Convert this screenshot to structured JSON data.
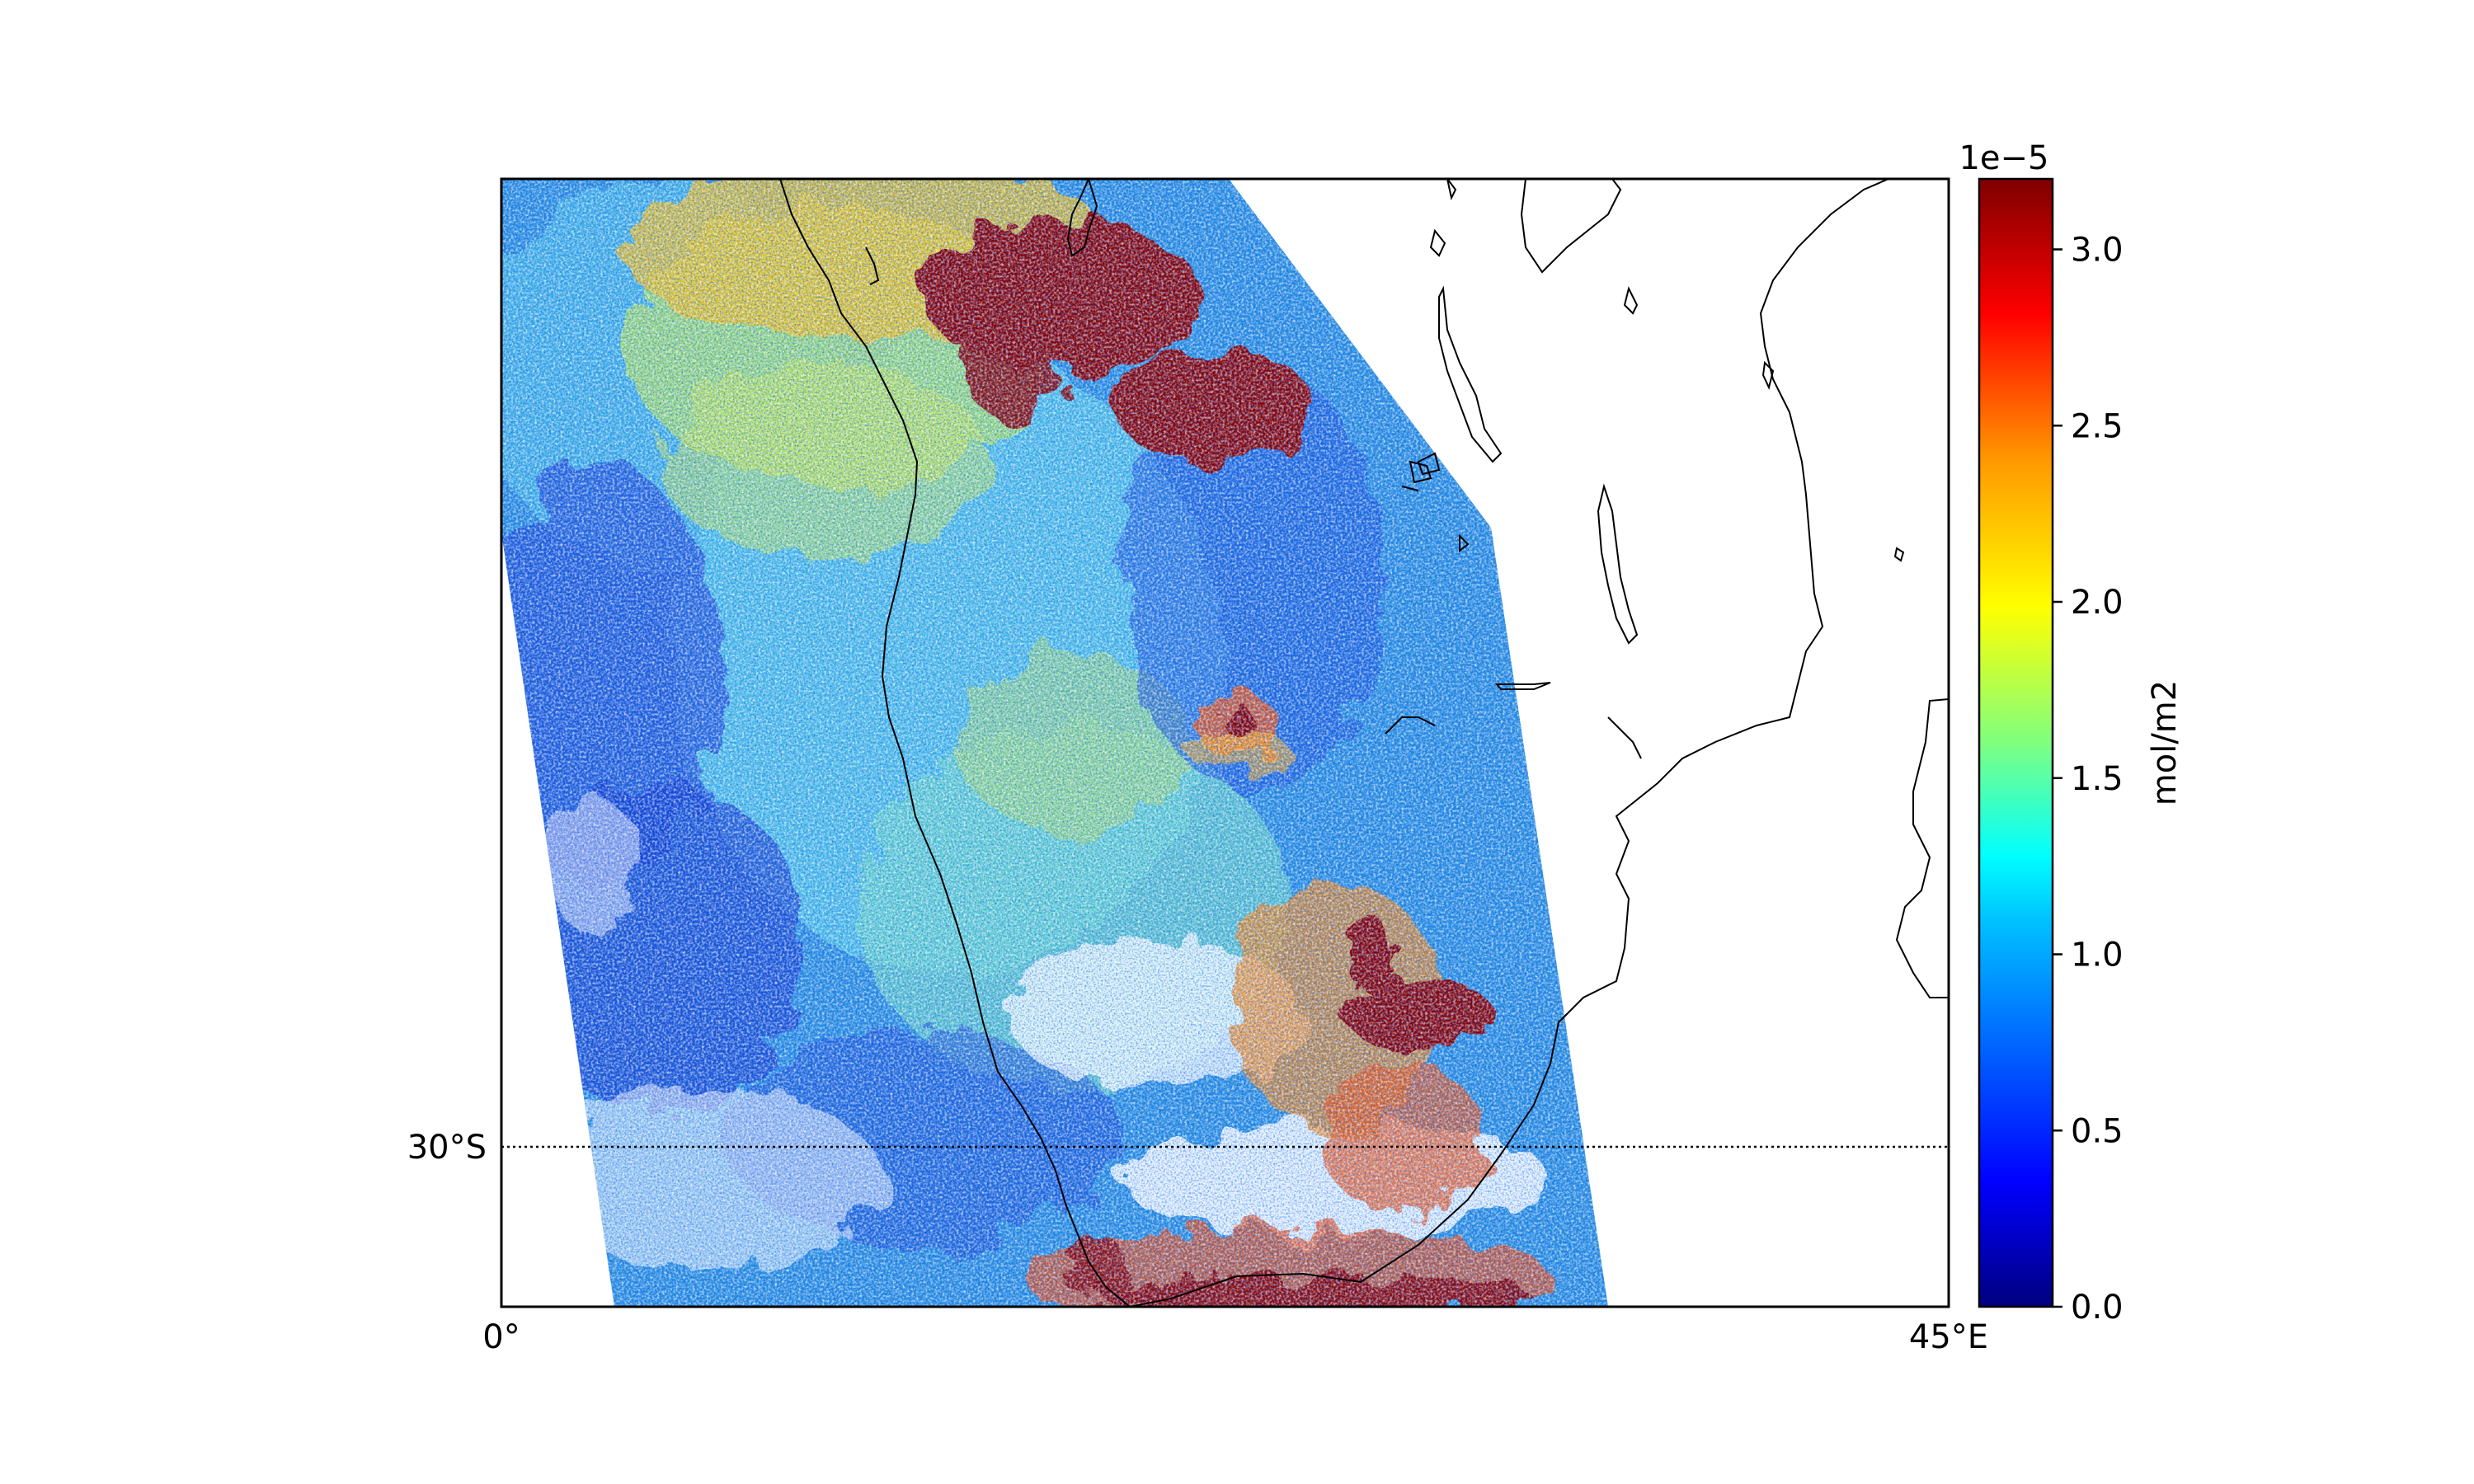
{
  "map": {
    "lon_labels": {
      "left": "0°",
      "right": "45°E"
    },
    "lat_labels": [
      {
        "text": "30°S",
        "lat": -30
      }
    ],
    "extent": {
      "lon_min": 0,
      "lon_max": 45,
      "lat_min": -35,
      "lat_max": 0
    },
    "graticule_style": "dotted",
    "coastline_color": "#000000"
  },
  "colorbar": {
    "label": "mol/m2",
    "exponent_label": "1e−5",
    "colormap": "jet",
    "vmin": 0.0,
    "vmax": 3.2,
    "ticks": [
      "0.0",
      "0.5",
      "1.0",
      "1.5",
      "2.0",
      "2.5",
      "3.0"
    ],
    "tick_values": [
      0.0,
      0.5,
      1.0,
      1.5,
      2.0,
      2.5,
      3.0
    ],
    "colors": [
      "#00007f",
      "#0000ff",
      "#007fff",
      "#00ffff",
      "#7fff7f",
      "#ffff00",
      "#ff7f00",
      "#ff0000",
      "#7f0000"
    ]
  },
  "swath": {
    "description_colors": {
      "low": "#1e50e6",
      "mid": "#3cb4e6",
      "high": "#e6e61e",
      "max": "#8b0000"
    }
  }
}
